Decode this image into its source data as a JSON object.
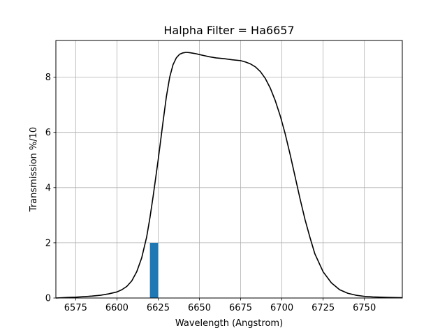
{
  "chart_data": {
    "type": "line",
    "title": "Halpha Filter = Ha6657",
    "xlabel": "Wavelength (Angstrom)",
    "ylabel": "Transmission %/10",
    "xlim": [
      6563,
      6773
    ],
    "ylim": [
      0,
      9.33
    ],
    "xticks": [
      6575,
      6600,
      6625,
      6650,
      6675,
      6700,
      6725,
      6750
    ],
    "yticks": [
      0,
      2,
      4,
      6,
      8
    ],
    "grid": true,
    "series": [
      {
        "type": "line",
        "color": "#000000",
        "x": [
          6563,
          6570,
          6575,
          6580,
          6585,
          6590,
          6595,
          6600,
          6603,
          6606,
          6609,
          6612,
          6615,
          6618,
          6620,
          6622,
          6625,
          6628,
          6630,
          6632,
          6634,
          6636,
          6638,
          6640,
          6642,
          6644,
          6646,
          6648,
          6650,
          6653,
          6656,
          6660,
          6665,
          6670,
          6675,
          6678,
          6681,
          6684,
          6687,
          6690,
          6693,
          6696,
          6699,
          6702,
          6705,
          6708,
          6711,
          6714,
          6717,
          6720,
          6725,
          6730,
          6735,
          6740,
          6745,
          6750,
          6755,
          6760,
          6765,
          6773
        ],
        "y": [
          0.0,
          0.02,
          0.03,
          0.05,
          0.07,
          0.1,
          0.15,
          0.22,
          0.3,
          0.42,
          0.62,
          0.95,
          1.45,
          2.2,
          2.9,
          3.7,
          5.0,
          6.4,
          7.3,
          8.0,
          8.45,
          8.7,
          8.83,
          8.88,
          8.9,
          8.89,
          8.87,
          8.85,
          8.82,
          8.78,
          8.74,
          8.7,
          8.67,
          8.63,
          8.6,
          8.55,
          8.48,
          8.37,
          8.2,
          7.95,
          7.6,
          7.15,
          6.6,
          5.95,
          5.2,
          4.4,
          3.6,
          2.85,
          2.2,
          1.6,
          0.95,
          0.55,
          0.3,
          0.17,
          0.1,
          0.06,
          0.04,
          0.03,
          0.02,
          0.01
        ]
      },
      {
        "type": "bar",
        "color": "#1f77b4",
        "x_start": 6620,
        "x_end": 6625,
        "value": 2.0
      }
    ]
  }
}
